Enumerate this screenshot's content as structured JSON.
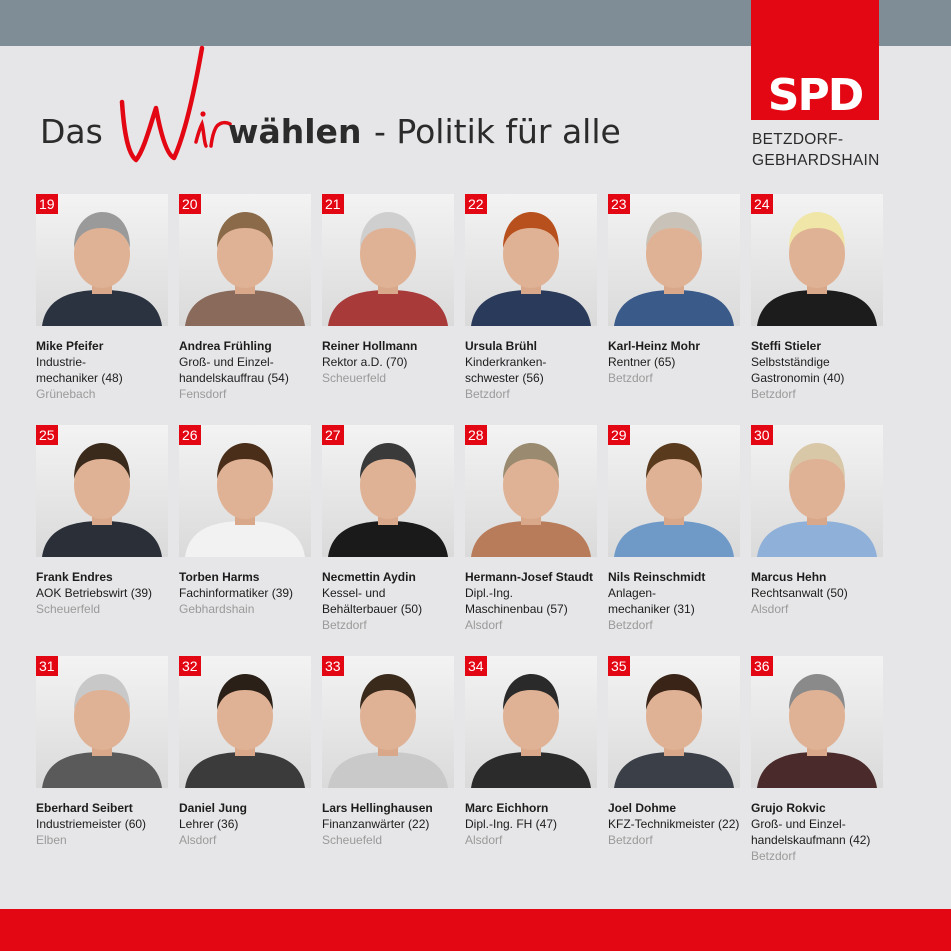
{
  "logo": {
    "text": "SPD",
    "color": "#e30613"
  },
  "region": [
    "BETZDORF-",
    "GEBHARDSHAIN"
  ],
  "headline": {
    "das": "Das",
    "wir": "Wir",
    "wahlen": "wählen",
    "rest": "- Politik für alle"
  },
  "colors": {
    "red": "#e30613",
    "top_band": "#7f8e96",
    "background": "#e6e6e8",
    "town": "#9a9a9a"
  },
  "candidates": [
    {
      "number": "19",
      "name": "Mike Pfeifer",
      "job": [
        "Industrie-",
        "mechaniker (48)"
      ],
      "town": "Grünebach"
    },
    {
      "number": "20",
      "name": "Andrea Frühling",
      "job": [
        "Groß- und Einzel-",
        "handelskauffrau (54)"
      ],
      "town": "Fensdorf"
    },
    {
      "number": "21",
      "name": "Reiner Hollmann",
      "job": [
        "Rektor a.D. (70)"
      ],
      "town": "Scheuerfeld"
    },
    {
      "number": "22",
      "name": "Ursula Brühl",
      "job": [
        "Kinderkranken-",
        "schwester (56)"
      ],
      "town": "Betzdorf"
    },
    {
      "number": "23",
      "name": "Karl-Heinz Mohr",
      "job": [
        "Rentner (65)"
      ],
      "town": "Betzdorf"
    },
    {
      "number": "24",
      "name": "Steffi Stieler",
      "job": [
        "Selbstständige",
        "Gastronomin (40)"
      ],
      "town": "Betzdorf"
    },
    {
      "number": "25",
      "name": "Frank Endres",
      "job": [
        "AOK Betriebswirt (39)"
      ],
      "town": "Scheuerfeld"
    },
    {
      "number": "26",
      "name": "Torben Harms",
      "job": [
        "Fachinformatiker (39)"
      ],
      "town": "Gebhardshain"
    },
    {
      "number": "27",
      "name": "Necmettin Aydin",
      "job": [
        "Kessel- und",
        "Behälterbauer (50)"
      ],
      "town": "Betzdorf"
    },
    {
      "number": "28",
      "name": "Hermann-Josef Staudt",
      "job": [
        "Dipl.-Ing.",
        "Maschinenbau (57)"
      ],
      "town": "Alsdorf"
    },
    {
      "number": "29",
      "name": "Nils Reinschmidt",
      "job": [
        "Anlagen-",
        "mechaniker (31)"
      ],
      "town": "Betzdorf"
    },
    {
      "number": "30",
      "name": "Marcus Hehn",
      "job": [
        "Rechtsanwalt (50)"
      ],
      "town": "Alsdorf"
    },
    {
      "number": "31",
      "name": "Eberhard Seibert",
      "job": [
        "Industriemeister (60)"
      ],
      "town": "Elben"
    },
    {
      "number": "32",
      "name": "Daniel Jung",
      "job": [
        "Lehrer (36)"
      ],
      "town": "Alsdorf"
    },
    {
      "number": "33",
      "name": "Lars Hellinghausen",
      "job": [
        "Finanzanwärter (22)"
      ],
      "town": "Scheuefeld"
    },
    {
      "number": "34",
      "name": "Marc Eichhorn",
      "job": [
        "Dipl.-Ing. FH (47)"
      ],
      "town": "Alsdorf"
    },
    {
      "number": "35",
      "name": "Joel Dohme",
      "job": [
        "KFZ-Technikmeister (22)"
      ],
      "town": "Betzdorf"
    },
    {
      "number": "36",
      "name": "Grujo Rokvic",
      "job": [
        "Groß- und Einzel-",
        "handelskaufmann (42)"
      ],
      "town": "Betzdorf"
    }
  ]
}
